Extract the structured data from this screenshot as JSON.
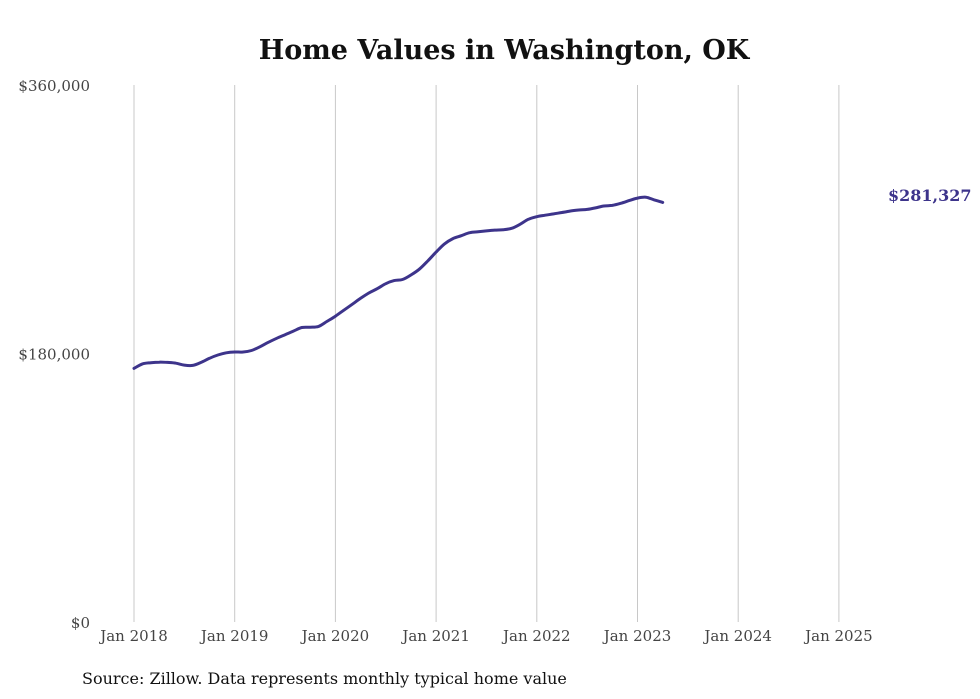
{
  "chart_data": {
    "type": "line",
    "title": "Home Values in Washington, OK",
    "xlabel": "",
    "ylabel": "",
    "ylim": [
      0,
      360000
    ],
    "y_ticks": [
      "$0",
      "$180,000",
      "$360,000"
    ],
    "x_ticks": [
      "Jan 2018",
      "Jan 2019",
      "Jan 2020",
      "Jan 2021",
      "Jan 2022",
      "Jan 2023",
      "Jan 2024",
      "Jan 2025"
    ],
    "grid": "vertical",
    "line_color": "#3d348b",
    "end_label": "$281,327",
    "series": [
      {
        "values": [
          [
            "2018-01",
            170000
          ],
          [
            "2018-02",
            173000
          ],
          [
            "2018-03",
            173800
          ],
          [
            "2018-04",
            174200
          ],
          [
            "2018-05",
            174000
          ],
          [
            "2018-06",
            173500
          ],
          [
            "2018-07",
            172200
          ],
          [
            "2018-08",
            172000
          ],
          [
            "2018-09",
            174000
          ],
          [
            "2018-10",
            176800
          ],
          [
            "2018-11",
            179000
          ],
          [
            "2018-12",
            180500
          ],
          [
            "2019-01",
            181000
          ],
          [
            "2019-02",
            181000
          ],
          [
            "2019-03",
            182000
          ],
          [
            "2019-04",
            184500
          ],
          [
            "2019-05",
            187500
          ],
          [
            "2019-06",
            190200
          ],
          [
            "2019-07",
            192600
          ],
          [
            "2019-08",
            195000
          ],
          [
            "2019-09",
            197400
          ],
          [
            "2019-10",
            197600
          ],
          [
            "2019-11",
            198200
          ],
          [
            "2019-12",
            201500
          ],
          [
            "2020-01",
            205000
          ],
          [
            "2020-02",
            209000
          ],
          [
            "2020-03",
            213000
          ],
          [
            "2020-04",
            217000
          ],
          [
            "2020-05",
            220600
          ],
          [
            "2020-06",
            223500
          ],
          [
            "2020-07",
            226800
          ],
          [
            "2020-08",
            228900
          ],
          [
            "2020-09",
            229600
          ],
          [
            "2020-10",
            232600
          ],
          [
            "2020-11",
            236500
          ],
          [
            "2020-12",
            242000
          ],
          [
            "2021-01",
            248000
          ],
          [
            "2021-02",
            253500
          ],
          [
            "2021-03",
            257000
          ],
          [
            "2021-04",
            259000
          ],
          [
            "2021-05",
            261000
          ],
          [
            "2021-06",
            261600
          ],
          [
            "2021-07",
            262200
          ],
          [
            "2021-08",
            262700
          ],
          [
            "2021-09",
            263000
          ],
          [
            "2021-10",
            263900
          ],
          [
            "2021-11",
            266600
          ],
          [
            "2021-12",
            270000
          ],
          [
            "2022-01",
            271700
          ],
          [
            "2022-02",
            272700
          ],
          [
            "2022-03",
            273600
          ],
          [
            "2022-04",
            274500
          ],
          [
            "2022-05",
            275500
          ],
          [
            "2022-06",
            276200
          ],
          [
            "2022-07",
            276600
          ],
          [
            "2022-08",
            277600
          ],
          [
            "2022-09",
            278900
          ],
          [
            "2022-10",
            279300
          ],
          [
            "2022-11",
            280700
          ],
          [
            "2022-12",
            282500
          ],
          [
            "2023-01",
            284200
          ],
          [
            "2023-02",
            284800
          ],
          [
            "2023-03",
            283000
          ],
          [
            "2023-04",
            281327
          ]
        ]
      }
    ]
  },
  "source_note": "Source: Zillow. Data represents monthly typical home value"
}
